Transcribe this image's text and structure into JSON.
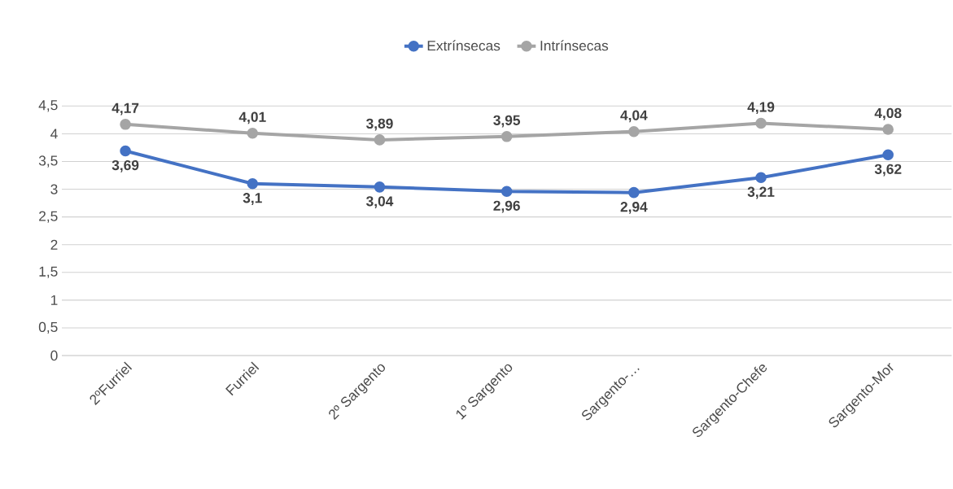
{
  "chart_data": {
    "type": "line",
    "categories": [
      "2ºFurriel",
      "Furriel",
      "2º Sargento",
      "1º Sargento",
      "Sargento-…",
      "Sargento-Chefe",
      "Sargento-Mor"
    ],
    "series": [
      {
        "name": "Extrínsecas",
        "color": "#4472c4",
        "values": [
          3.69,
          3.1,
          3.04,
          2.96,
          2.94,
          3.21,
          3.62
        ],
        "value_labels": [
          "3,69",
          "3,1",
          "3,04",
          "2,96",
          "2,94",
          "3,21",
          "3,62"
        ]
      },
      {
        "name": "Intrínsecas",
        "color": "#a5a5a5",
        "values": [
          4.17,
          4.01,
          3.89,
          3.95,
          4.04,
          4.19,
          4.08
        ],
        "value_labels": [
          "4,17",
          "4,01",
          "3,89",
          "3,95",
          "4,04",
          "4,19",
          "4,08"
        ]
      }
    ],
    "ylim": [
      0,
      4.5
    ],
    "yticks": [
      0,
      {
        "value": 0.5,
        "label": "0,5"
      },
      1,
      {
        "value": 1.5,
        "label": "1,5"
      },
      2,
      {
        "value": 2.5,
        "label": "2,5"
      },
      3,
      {
        "value": 3.5,
        "label": "3,5"
      },
      4,
      {
        "value": 4.5,
        "label": "4,5"
      }
    ],
    "grid": "y",
    "legend": "top",
    "marker": "circle",
    "line_style": "solid"
  }
}
